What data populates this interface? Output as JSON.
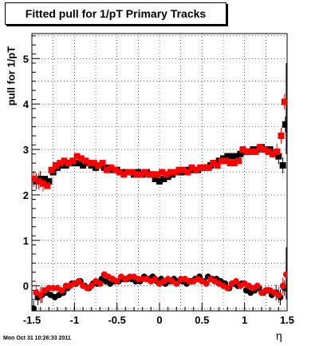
{
  "chart_data": {
    "type": "scatter",
    "title": "Fitted pull for 1/pT  Primary Tracks",
    "xlabel": "η",
    "ylabel": "pull for 1/pT",
    "xlim": [
      -1.5,
      1.5
    ],
    "ylim": [
      -0.55,
      5.55
    ],
    "x_ticks": [
      "-1.5",
      "-1",
      "-0.5",
      "0",
      "0.5",
      "1",
      "1.5"
    ],
    "x_tick_values": [
      -1.5,
      -1,
      -0.5,
      0,
      0.5,
      1,
      1.5
    ],
    "y_ticks": [
      "0",
      "1",
      "2",
      "3",
      "4",
      "5"
    ],
    "y_tick_values": [
      0,
      1,
      2,
      3,
      4,
      5
    ],
    "grid": true,
    "series": [
      {
        "color": "#000000",
        "marker": "square",
        "x": [
          -1.45,
          -1.4,
          -1.35,
          -1.3,
          -1.25,
          -1.2,
          -1.15,
          -1.1,
          -1.05,
          -1.0,
          -0.95,
          -0.9,
          -0.85,
          -0.8,
          -0.75,
          -0.7,
          -0.65,
          -0.6,
          -0.55,
          -0.5,
          -0.45,
          -0.4,
          -0.35,
          -0.3,
          -0.25,
          -0.2,
          -0.15,
          -0.1,
          -0.05,
          0.0,
          0.05,
          0.1,
          0.15,
          0.2,
          0.25,
          0.3,
          0.35,
          0.4,
          0.45,
          0.5,
          0.55,
          0.6,
          0.65,
          0.7,
          0.75,
          0.8,
          0.85,
          0.9,
          0.95,
          1.0,
          1.05,
          1.1,
          1.15,
          1.2,
          1.25,
          1.3,
          1.35,
          1.4,
          1.45,
          1.48
        ],
        "y": [
          2.3,
          2.35,
          2.35,
          2.3,
          2.5,
          2.6,
          2.65,
          2.65,
          2.7,
          2.7,
          2.7,
          2.65,
          2.7,
          2.65,
          2.6,
          2.65,
          2.6,
          2.6,
          2.55,
          2.55,
          2.5,
          2.5,
          2.5,
          2.45,
          2.5,
          2.45,
          2.5,
          2.45,
          2.35,
          2.3,
          2.35,
          2.4,
          2.45,
          2.5,
          2.5,
          2.5,
          2.55,
          2.55,
          2.55,
          2.6,
          2.6,
          2.65,
          2.7,
          2.75,
          2.8,
          2.85,
          2.85,
          2.85,
          2.9,
          2.95,
          2.95,
          3.0,
          3.0,
          3.05,
          3.0,
          3.0,
          2.9,
          2.85,
          2.65,
          3.55
        ]
      },
      {
        "color": "#ff0000",
        "marker": "square",
        "x": [
          -1.48,
          -1.42,
          -1.37,
          -1.32,
          -1.27,
          -1.22,
          -1.17,
          -1.12,
          -1.07,
          -1.02,
          -0.97,
          -0.92,
          -0.87,
          -0.82,
          -0.77,
          -0.72,
          -0.67,
          -0.62,
          -0.57,
          -0.52,
          -0.47,
          -0.42,
          -0.37,
          -0.32,
          -0.27,
          -0.22,
          -0.17,
          -0.12,
          -0.07,
          -0.02,
          0.03,
          0.08,
          0.13,
          0.18,
          0.23,
          0.28,
          0.33,
          0.38,
          0.43,
          0.48,
          0.53,
          0.58,
          0.63,
          0.68,
          0.73,
          0.78,
          0.83,
          0.88,
          0.93,
          0.98,
          1.03,
          1.08,
          1.13,
          1.18,
          1.23,
          1.28,
          1.33,
          1.38,
          1.43,
          1.47
        ],
        "y": [
          2.35,
          2.3,
          2.25,
          2.2,
          2.55,
          2.65,
          2.7,
          2.75,
          2.7,
          2.75,
          2.85,
          2.8,
          2.75,
          2.7,
          2.7,
          2.65,
          2.7,
          2.55,
          2.6,
          2.55,
          2.5,
          2.45,
          2.5,
          2.5,
          2.45,
          2.45,
          2.5,
          2.45,
          2.45,
          2.45,
          2.5,
          2.45,
          2.5,
          2.5,
          2.55,
          2.55,
          2.5,
          2.6,
          2.55,
          2.6,
          2.6,
          2.6,
          2.7,
          2.65,
          2.75,
          2.75,
          2.7,
          2.7,
          2.75,
          3.0,
          2.95,
          2.95,
          2.95,
          3.05,
          3.0,
          2.95,
          2.9,
          2.95,
          3.3,
          4.05
        ]
      },
      {
        "color": "#000000",
        "marker": "circle",
        "x": [
          -1.48,
          -1.43,
          -1.38,
          -1.33,
          -1.28,
          -1.23,
          -1.18,
          -1.13,
          -1.08,
          -1.03,
          -0.98,
          -0.93,
          -0.88,
          -0.83,
          -0.78,
          -0.73,
          -0.68,
          -0.63,
          -0.58,
          -0.53,
          -0.48,
          -0.43,
          -0.38,
          -0.33,
          -0.28,
          -0.23,
          -0.18,
          -0.13,
          -0.08,
          -0.03,
          0.02,
          0.07,
          0.12,
          0.17,
          0.22,
          0.27,
          0.32,
          0.37,
          0.42,
          0.47,
          0.52,
          0.57,
          0.62,
          0.67,
          0.72,
          0.77,
          0.82,
          0.87,
          0.92,
          0.97,
          1.02,
          1.07,
          1.12,
          1.17,
          1.22,
          1.27,
          1.32,
          1.37,
          1.42,
          1.47
        ],
        "y": [
          -0.5,
          -0.25,
          -0.2,
          -0.15,
          -0.2,
          -0.25,
          -0.2,
          -0.15,
          -0.05,
          0.05,
          0.05,
          0.1,
          0.0,
          -0.05,
          0.05,
          0.05,
          0.15,
          0.1,
          0.05,
          0.1,
          0.1,
          0.15,
          0.15,
          0.15,
          0.1,
          0.1,
          0.2,
          0.15,
          0.2,
          0.1,
          0.15,
          0.05,
          0.1,
          0.15,
          0.1,
          0.1,
          0.05,
          0.1,
          0.15,
          0.2,
          0.1,
          0.2,
          0.15,
          0.15,
          0.1,
          0.05,
          -0.05,
          0.05,
          0.0,
          0.05,
          -0.1,
          -0.15,
          -0.1,
          -0.05,
          -0.15,
          -0.1,
          -0.2,
          -0.15,
          -0.25,
          -0.05
        ]
      },
      {
        "color": "#ff0000",
        "marker": "circle",
        "x": [
          -1.45,
          -1.4,
          -1.35,
          -1.3,
          -1.25,
          -1.2,
          -1.15,
          -1.1,
          -1.05,
          -1.0,
          -0.95,
          -0.9,
          -0.85,
          -0.8,
          -0.75,
          -0.7,
          -0.65,
          -0.6,
          -0.55,
          -0.5,
          -0.45,
          -0.4,
          -0.35,
          -0.3,
          -0.25,
          -0.2,
          -0.15,
          -0.1,
          -0.05,
          0.0,
          0.05,
          0.1,
          0.15,
          0.2,
          0.25,
          0.3,
          0.35,
          0.4,
          0.45,
          0.5,
          0.55,
          0.6,
          0.65,
          0.7,
          0.75,
          0.8,
          0.85,
          0.9,
          0.95,
          1.0,
          1.05,
          1.1,
          1.15,
          1.2,
          1.25,
          1.3,
          1.35,
          1.4,
          1.45,
          1.49
        ],
        "y": [
          -0.15,
          -0.2,
          -0.1,
          -0.05,
          -0.05,
          -0.05,
          -0.1,
          0.0,
          0.0,
          0.05,
          0.1,
          0.0,
          -0.05,
          0.0,
          0.1,
          0.05,
          0.25,
          0.2,
          0.15,
          0.1,
          0.2,
          0.15,
          0.2,
          0.2,
          0.15,
          0.15,
          0.15,
          0.1,
          0.15,
          0.05,
          0.1,
          0.15,
          0.1,
          0.05,
          0.15,
          0.15,
          0.1,
          0.1,
          0.15,
          0.1,
          0.05,
          0.15,
          0.1,
          0.05,
          0.0,
          -0.05,
          0.05,
          0.1,
          0.0,
          0.05,
          0.0,
          -0.05,
          0.0,
          -0.15,
          -0.1,
          -0.1,
          -0.15,
          -0.2,
          0.0,
          0.25
        ]
      }
    ]
  },
  "timestamp": "Mon Oct 31 10:26:33 2011"
}
